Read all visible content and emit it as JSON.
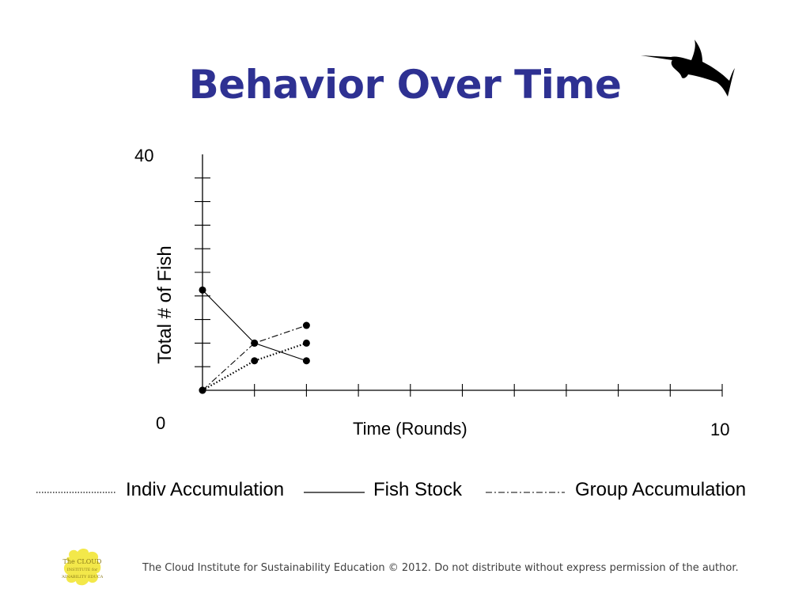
{
  "slide": {
    "title": "Behavior Over Time",
    "footer": "The Cloud Institute for Sustainability Education © 2012. Do not distribute without express permission of the author."
  },
  "logos": {
    "fish": "swordfish-icon",
    "cloud": "cloud-institute-logo",
    "cloud_text": "The CLOUD INSTITUTE for SUSTAINABILITY EDUCATION"
  },
  "chart_data": {
    "type": "line",
    "xlabel": "Time (Rounds)",
    "ylabel": "Total # of Fish",
    "xlim": [
      0,
      10
    ],
    "ylim": [
      0,
      40
    ],
    "x_tick_labels": [
      "0",
      "10"
    ],
    "y_tick_labels": [
      "0",
      "40"
    ],
    "grid": false,
    "legend_position": "bottom",
    "series": [
      {
        "name": "Indiv Accumulation",
        "style": "dotted",
        "x": [
          0,
          1,
          2
        ],
        "y": [
          0,
          5,
          8
        ]
      },
      {
        "name": "Fish Stock",
        "style": "solid",
        "x": [
          0,
          1,
          2
        ],
        "y": [
          17,
          8,
          5
        ]
      },
      {
        "name": "Group Accumulation",
        "style": "dashdot",
        "x": [
          0,
          1,
          2
        ],
        "y": [
          0,
          8,
          11
        ]
      }
    ],
    "colors": {
      "line": "#000000",
      "title": "#2e3192",
      "cloud_logo": "#f3e84a"
    }
  }
}
